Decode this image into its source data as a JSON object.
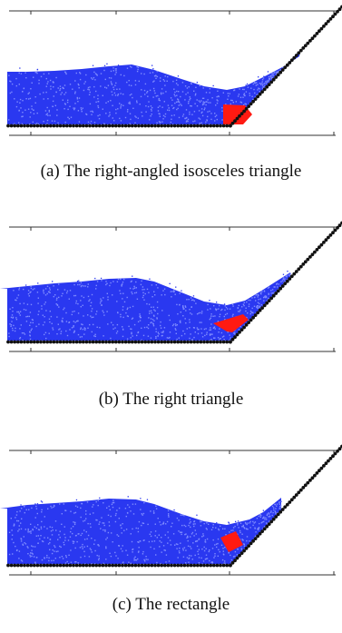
{
  "figure": {
    "panels": [
      {
        "id": "a",
        "caption": "(a) The right-angled isosceles triangle",
        "obstacle_shape": "right-angled isosceles triangle",
        "surface_profile": [
          [
            0,
            79
          ],
          [
            30,
            79
          ],
          [
            60,
            78
          ],
          [
            90,
            76
          ],
          [
            120,
            73
          ],
          [
            145,
            71
          ],
          [
            170,
            77
          ],
          [
            200,
            87
          ],
          [
            225,
            95
          ],
          [
            250,
            99
          ],
          [
            270,
            95
          ],
          [
            290,
            85
          ],
          [
            315,
            72
          ],
          [
            330,
            62
          ]
        ],
        "obstacle_points": [
          [
            246,
            115
          ],
          [
            246,
            137
          ],
          [
            268,
            137
          ],
          [
            278,
            126
          ],
          [
            270,
            116
          ]
        ]
      },
      {
        "id": "b",
        "caption": "(b) The right triangle",
        "obstacle_shape": "right triangle",
        "surface_profile": [
          [
            0,
            80
          ],
          [
            30,
            77
          ],
          [
            60,
            74
          ],
          [
            90,
            72
          ],
          [
            120,
            69
          ],
          [
            150,
            68
          ],
          [
            170,
            72
          ],
          [
            200,
            84
          ],
          [
            225,
            94
          ],
          [
            250,
            98
          ],
          [
            270,
            93
          ],
          [
            290,
            81
          ],
          [
            320,
            62
          ]
        ],
        "obstacle_points": [
          [
            235,
            118
          ],
          [
            268,
            108
          ],
          [
            274,
            114
          ],
          [
            256,
            128
          ],
          [
            250,
            127
          ]
        ]
      },
      {
        "id": "c",
        "caption": "(c) The rectangle",
        "obstacle_shape": "rectangle",
        "surface_profile": [
          [
            0,
            76
          ],
          [
            30,
            72
          ],
          [
            60,
            70
          ],
          [
            90,
            68
          ],
          [
            120,
            65
          ],
          [
            150,
            66
          ],
          [
            170,
            71
          ],
          [
            200,
            82
          ],
          [
            225,
            90
          ],
          [
            250,
            94
          ],
          [
            275,
            88
          ],
          [
            290,
            80
          ],
          [
            310,
            64
          ]
        ],
        "obstacle_points": [
          [
            243,
            108
          ],
          [
            260,
            101
          ],
          [
            268,
            116
          ],
          [
            252,
            124
          ]
        ]
      }
    ],
    "colors": {
      "fluid": "#2a38f0",
      "fluid_light": "#7f8cff",
      "obstacle": "#ff1a12",
      "boundary": "#111111",
      "axis": "#333333"
    }
  }
}
